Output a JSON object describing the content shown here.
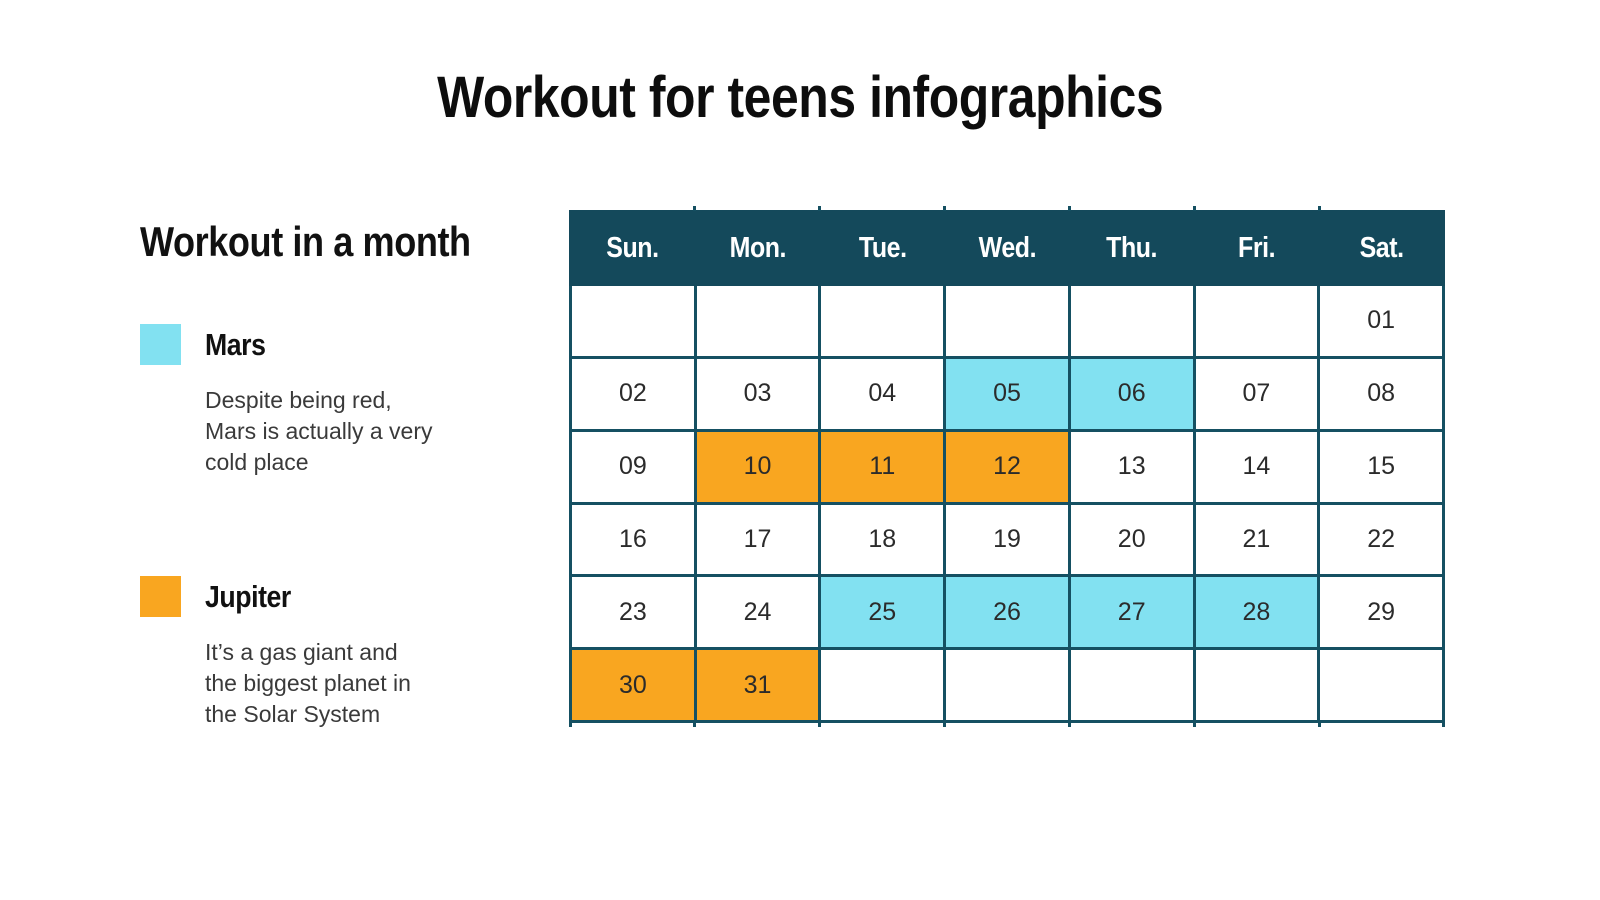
{
  "page": {
    "title": "Workout for teens infographics"
  },
  "colors": {
    "mars": "#82e1f1",
    "jupiter": "#f9a620",
    "header_bg": "#14495b",
    "border": "#155062"
  },
  "legend": {
    "heading": "Workout in a month",
    "items": [
      {
        "name": "Mars",
        "color": "#82e1f1",
        "description": "Despite being red,\nMars is actually a very\ncold place"
      },
      {
        "name": "Jupiter",
        "color": "#f9a620",
        "description": "It’s a gas giant and\nthe biggest planet in\nthe Solar System"
      }
    ]
  },
  "calendar": {
    "day_headers": [
      "Sun.",
      "Mon.",
      "Tue.",
      "Wed.",
      "Thu.",
      "Fri.",
      "Sat."
    ],
    "weeks": [
      [
        "",
        "",
        "",
        "",
        "",
        "",
        "01"
      ],
      [
        "02",
        "03",
        "04",
        "05",
        "06",
        "07",
        "08"
      ],
      [
        "09",
        "10",
        "11",
        "12",
        "13",
        "14",
        "15"
      ],
      [
        "16",
        "17",
        "18",
        "19",
        "20",
        "21",
        "22"
      ],
      [
        "23",
        "24",
        "25",
        "26",
        "27",
        "28",
        "29"
      ],
      [
        "30",
        "31",
        "",
        "",
        "",
        "",
        ""
      ]
    ],
    "highlights": {
      "mars": [
        "05",
        "06",
        "25",
        "26",
        "27",
        "28"
      ],
      "jupiter": [
        "10",
        "11",
        "12",
        "30",
        "31"
      ]
    }
  }
}
